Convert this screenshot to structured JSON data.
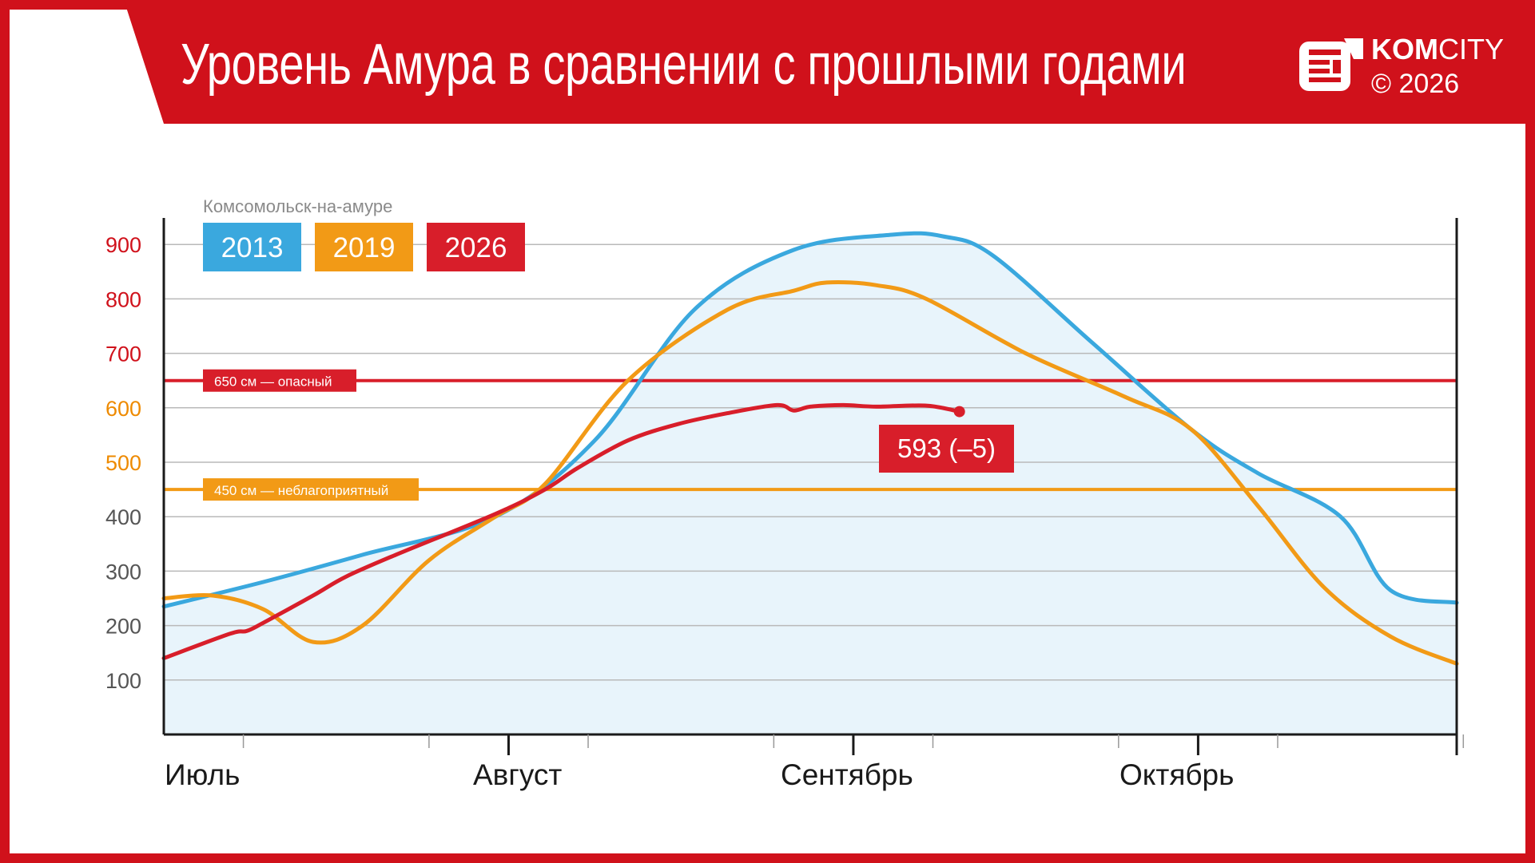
{
  "header": {
    "title": "Уровень Амура в сравнении с прошлыми годами",
    "brand_bold": "KOM",
    "brand_light": "CITY",
    "copyright": "© 2026",
    "color": "#d0111b"
  },
  "chart_data": {
    "type": "line",
    "subtitle": "Комсомольск-на-амуре",
    "x_labels": [
      "Июль",
      "Август",
      "Сентябрь",
      "Октябрь"
    ],
    "ylim": [
      0,
      960
    ],
    "y_ticks": [
      {
        "label": "900",
        "value": 900,
        "color": "#d0111b"
      },
      {
        "label": "800",
        "value": 800,
        "color": "#d0111b"
      },
      {
        "label": "700",
        "value": 700,
        "color": "#d0111b"
      },
      {
        "label": "600",
        "value": 600,
        "color": "#ee8a00"
      },
      {
        "label": "500",
        "value": 500,
        "color": "#ee8a00"
      },
      {
        "label": "400",
        "value": 400,
        "color": "#555555"
      },
      {
        "label": "300",
        "value": 300,
        "color": "#555555"
      },
      {
        "label": "200",
        "value": 200,
        "color": "#555555"
      },
      {
        "label": "100",
        "value": 100,
        "color": "#555555"
      }
    ],
    "grid": true,
    "legend_position": "top-left",
    "thresholds": [
      {
        "value": 650,
        "label": "650 см — опасный",
        "color": "#d81e2a"
      },
      {
        "value": 450,
        "label": "450 см — неблагоприятный",
        "color": "#f29a16"
      }
    ],
    "series": [
      {
        "name": "2013",
        "color": "#3aa8de",
        "fill": "#e8f4fb",
        "x": [
          0,
          0.3,
          0.6,
          1.0,
          1.3,
          1.6,
          1.9,
          2.2,
          2.35,
          2.5,
          2.8,
          3.1,
          3.3,
          3.55,
          3.7,
          3.9
        ],
        "y": [
          235,
          280,
          330,
          400,
          540,
          780,
          890,
          918,
          915,
          880,
          720,
          560,
          480,
          400,
          265,
          242
        ]
      },
      {
        "name": "2019",
        "color": "#f29a16",
        "x": [
          0,
          0.15,
          0.3,
          0.45,
          0.6,
          0.8,
          1.0,
          1.15,
          1.4,
          1.7,
          1.9,
          2.0,
          2.15,
          2.3,
          2.6,
          2.9,
          3.1,
          3.3,
          3.5,
          3.7,
          3.9
        ],
        "y": [
          250,
          255,
          230,
          170,
          200,
          320,
          400,
          460,
          650,
          780,
          815,
          830,
          825,
          800,
          700,
          620,
          560,
          420,
          270,
          180,
          130
        ]
      },
      {
        "name": "2026",
        "color": "#d81e2a",
        "x": [
          0,
          0.2,
          0.25,
          0.3,
          0.45,
          0.55,
          0.7,
          1.0,
          1.15,
          1.25,
          1.4,
          1.55,
          1.7,
          1.85,
          1.9,
          1.95,
          2.05,
          2.15,
          2.3,
          2.4
        ],
        "y": [
          140,
          185,
          190,
          205,
          255,
          290,
          330,
          405,
          450,
          490,
          540,
          570,
          590,
          605,
          595,
          602,
          605,
          602,
          604,
          593
        ]
      }
    ],
    "annotations": [
      {
        "text": "593 (–5)",
        "series": "2026",
        "x": 2.4,
        "y": 593
      }
    ]
  }
}
